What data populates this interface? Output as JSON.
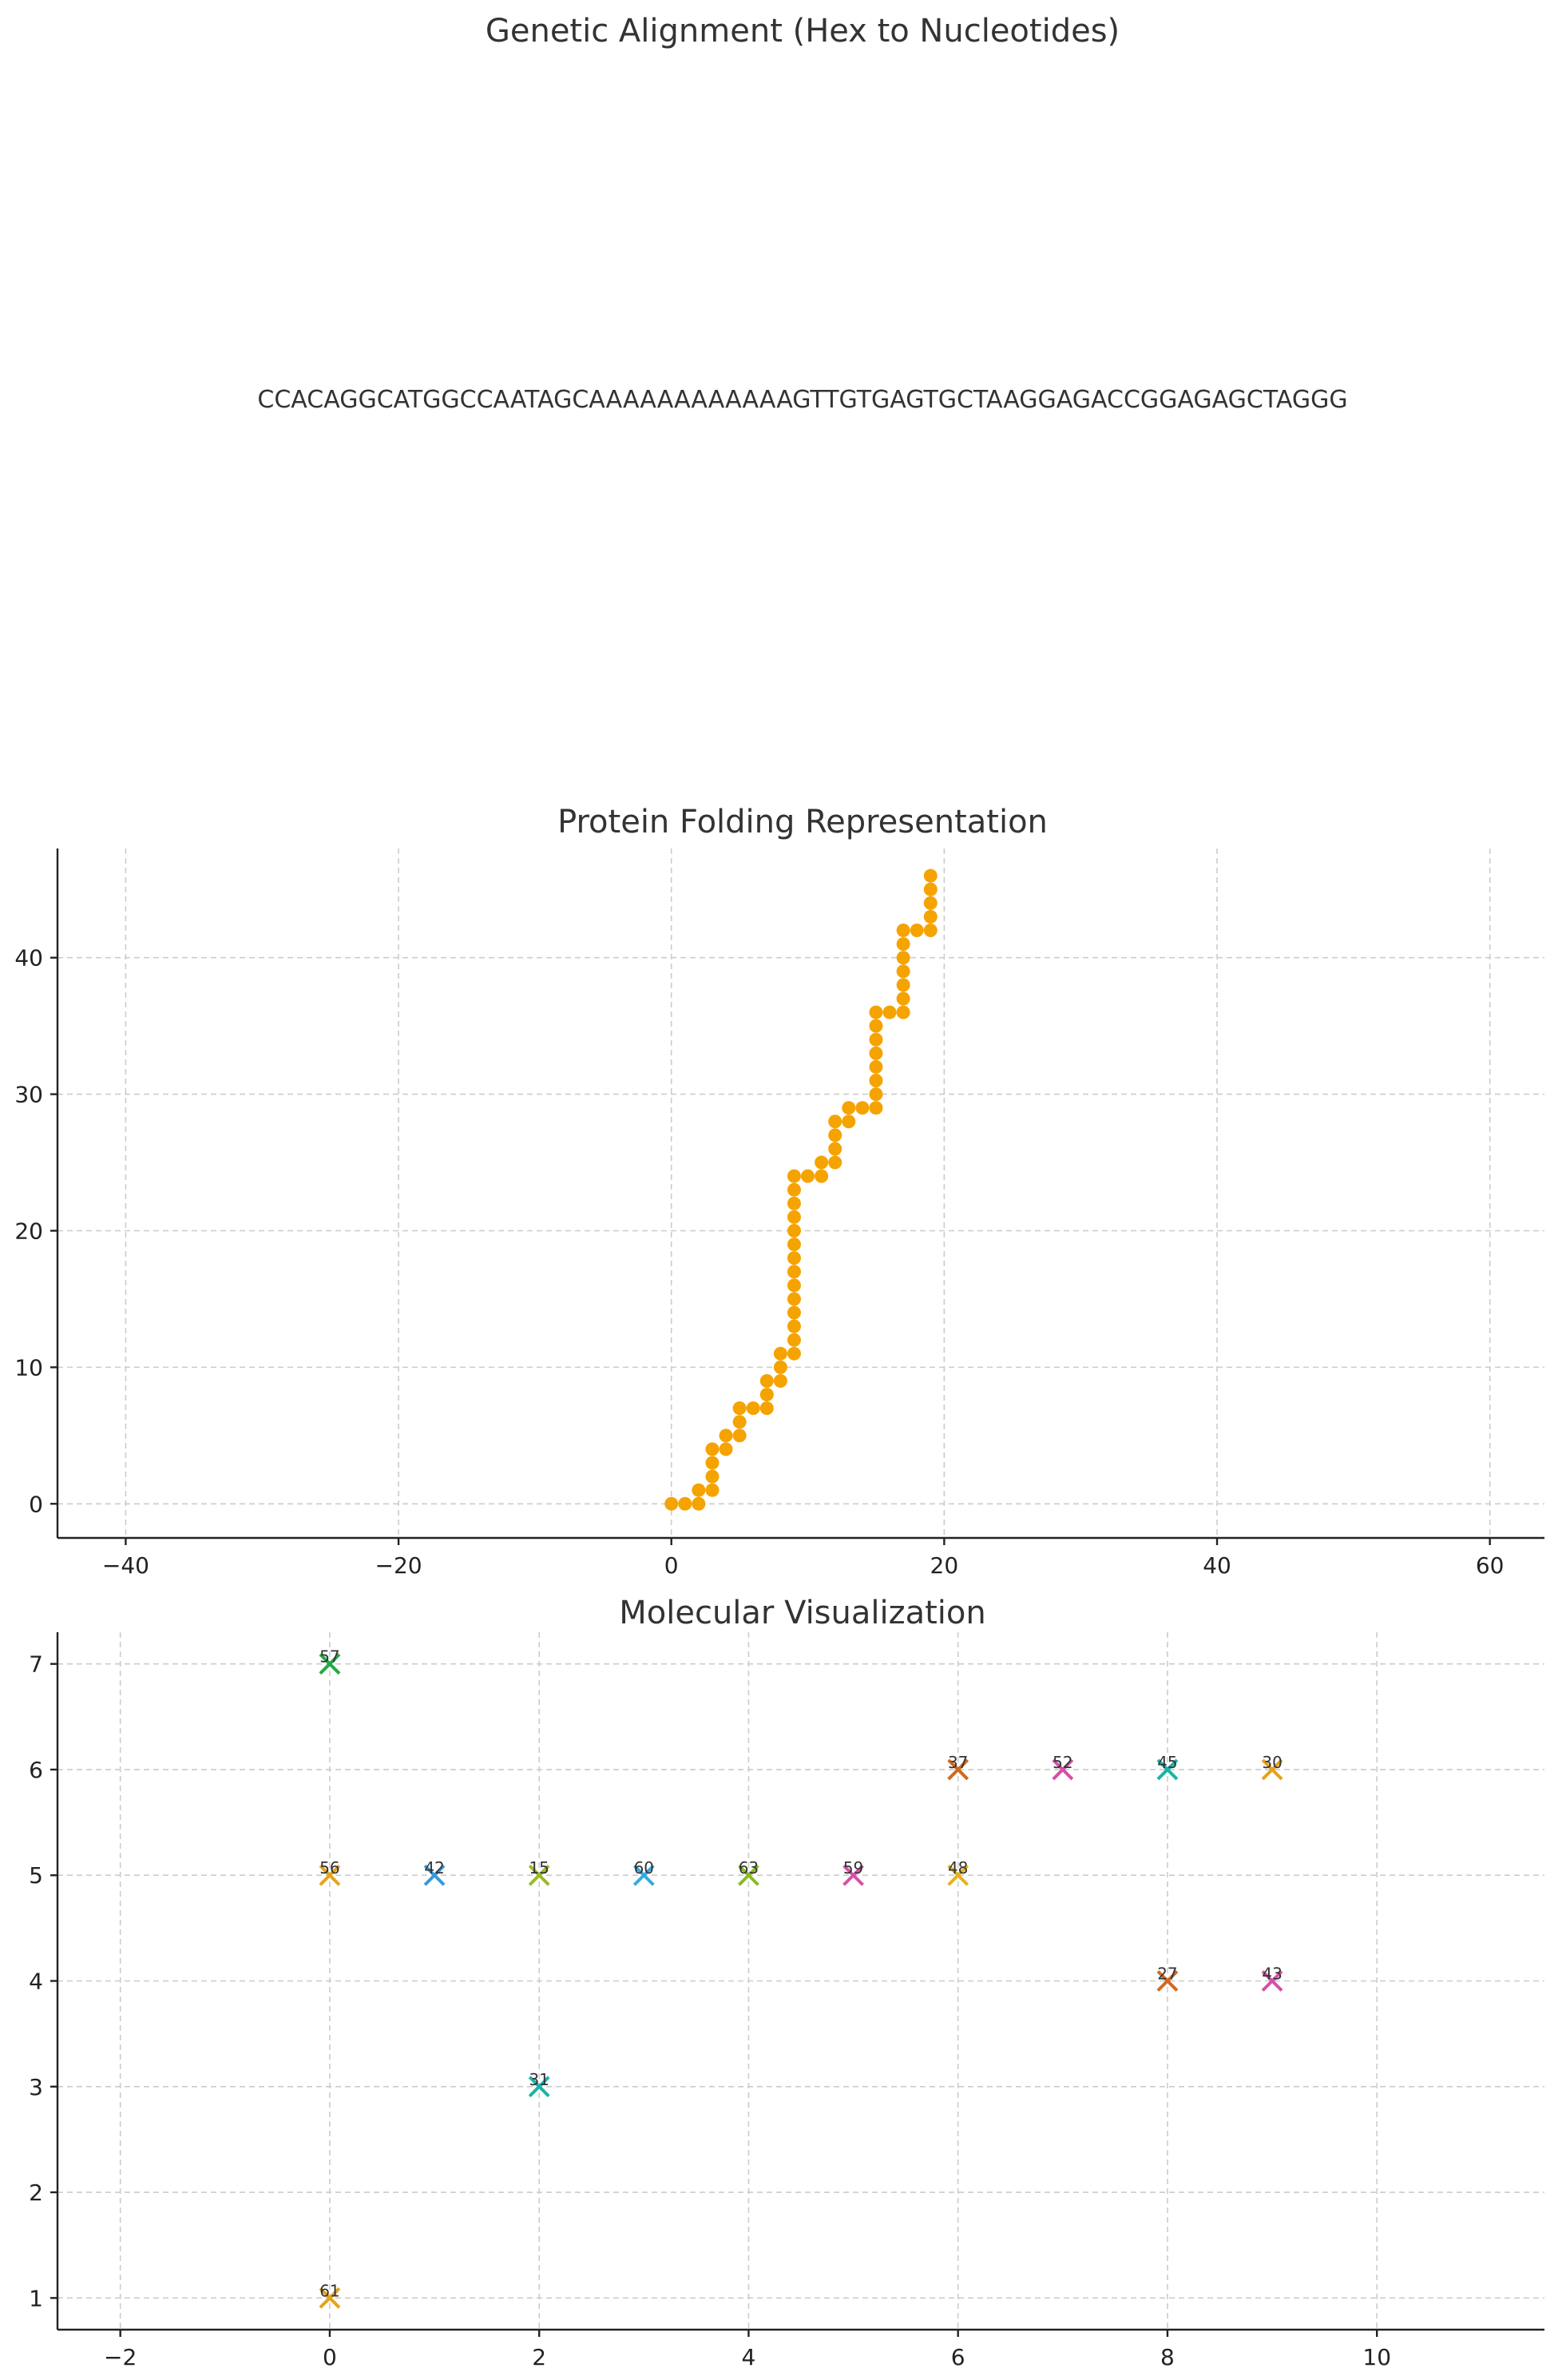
{
  "chart_data": [
    {
      "type": "text",
      "title": "Genetic Alignment (Hex to Nucleotides)",
      "sequence": "CCACAGGCATGGCCAATAGCAAAAAAAAAAAAGTTGTGAGTGCTAAGGAGACCGGAGAGCTAGGG"
    },
    {
      "type": "scatter",
      "title": "Protein Folding Representation",
      "xlim": [
        -45,
        64
      ],
      "ylim": [
        -2.5,
        48
      ],
      "xticks": [
        -40,
        -20,
        0,
        20,
        40,
        60
      ],
      "yticks": [
        0,
        10,
        20,
        30,
        40
      ],
      "grid": true,
      "marker_color": "#f5a300",
      "points": [
        [
          0,
          0
        ],
        [
          1,
          0
        ],
        [
          2,
          0
        ],
        [
          2,
          1
        ],
        [
          3,
          1
        ],
        [
          3,
          2
        ],
        [
          3,
          3
        ],
        [
          3,
          4
        ],
        [
          4,
          4
        ],
        [
          4,
          5
        ],
        [
          5,
          5
        ],
        [
          5,
          6
        ],
        [
          5,
          7
        ],
        [
          6,
          7
        ],
        [
          7,
          7
        ],
        [
          7,
          8
        ],
        [
          7,
          9
        ],
        [
          8,
          9
        ],
        [
          8,
          10
        ],
        [
          8,
          11
        ],
        [
          9,
          11
        ],
        [
          9,
          12
        ],
        [
          9,
          13
        ],
        [
          9,
          14
        ],
        [
          9,
          15
        ],
        [
          9,
          16
        ],
        [
          9,
          17
        ],
        [
          9,
          18
        ],
        [
          9,
          19
        ],
        [
          9,
          20
        ],
        [
          9,
          21
        ],
        [
          9,
          22
        ],
        [
          9,
          23
        ],
        [
          9,
          24
        ],
        [
          10,
          24
        ],
        [
          11,
          24
        ],
        [
          11,
          25
        ],
        [
          12,
          25
        ],
        [
          12,
          26
        ],
        [
          12,
          27
        ],
        [
          12,
          28
        ],
        [
          13,
          28
        ],
        [
          13,
          29
        ],
        [
          14,
          29
        ],
        [
          15,
          29
        ],
        [
          15,
          30
        ],
        [
          15,
          31
        ],
        [
          15,
          32
        ],
        [
          15,
          33
        ],
        [
          15,
          34
        ],
        [
          15,
          35
        ],
        [
          15,
          36
        ],
        [
          16,
          36
        ],
        [
          17,
          36
        ],
        [
          17,
          37
        ],
        [
          17,
          38
        ],
        [
          17,
          39
        ],
        [
          17,
          40
        ],
        [
          17,
          41
        ],
        [
          17,
          42
        ],
        [
          18,
          42
        ],
        [
          19,
          42
        ],
        [
          19,
          43
        ],
        [
          19,
          44
        ],
        [
          19,
          45
        ],
        [
          19,
          46
        ]
      ]
    },
    {
      "type": "scatter",
      "title": "Molecular Visualization",
      "xlim": [
        -2.6,
        11.6
      ],
      "ylim": [
        0.7,
        7.3
      ],
      "xticks": [
        -2,
        0,
        2,
        4,
        6,
        8,
        10
      ],
      "yticks": [
        1,
        2,
        3,
        4,
        5,
        6,
        7
      ],
      "grid": true,
      "marker": "x",
      "points": [
        {
          "x": 0,
          "y": 7,
          "label": "57",
          "color": "#22aa44"
        },
        {
          "x": 6,
          "y": 6,
          "label": "37",
          "color": "#d2691e"
        },
        {
          "x": 7,
          "y": 6,
          "label": "52",
          "color": "#d64fa8"
        },
        {
          "x": 8,
          "y": 6,
          "label": "45",
          "color": "#1ab3a6"
        },
        {
          "x": 9,
          "y": 6,
          "label": "30",
          "color": "#e6a21a"
        },
        {
          "x": 0,
          "y": 5,
          "label": "56",
          "color": "#e6a21a"
        },
        {
          "x": 1,
          "y": 5,
          "label": "42",
          "color": "#3399dd"
        },
        {
          "x": 2,
          "y": 5,
          "label": "15",
          "color": "#99bb22"
        },
        {
          "x": 3,
          "y": 5,
          "label": "60",
          "color": "#33aadd"
        },
        {
          "x": 4,
          "y": 5,
          "label": "63",
          "color": "#88bb22"
        },
        {
          "x": 5,
          "y": 5,
          "label": "59",
          "color": "#d64fa8"
        },
        {
          "x": 6,
          "y": 5,
          "label": "48",
          "color": "#e6b21a"
        },
        {
          "x": 8,
          "y": 4,
          "label": "27",
          "color": "#d2691e"
        },
        {
          "x": 9,
          "y": 4,
          "label": "43",
          "color": "#d64fa8"
        },
        {
          "x": 2,
          "y": 3,
          "label": "31",
          "color": "#1ab3a6"
        },
        {
          "x": 0,
          "y": 1,
          "label": "61",
          "color": "#e6a21a"
        }
      ]
    }
  ]
}
